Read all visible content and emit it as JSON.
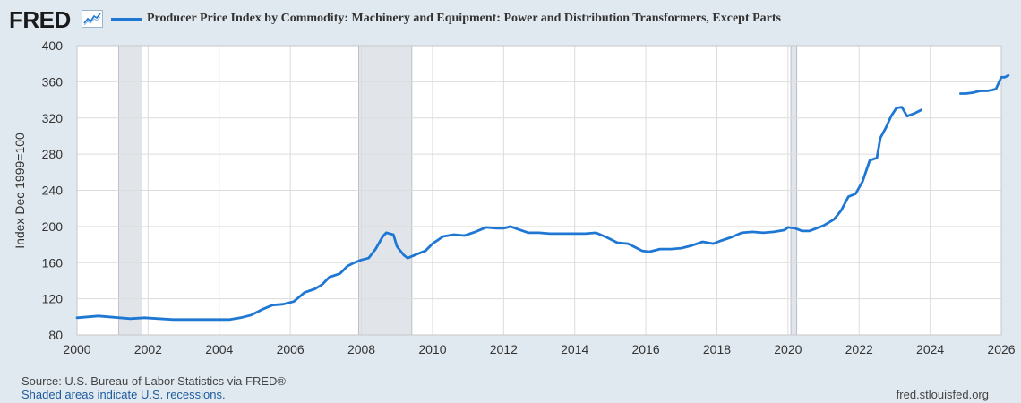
{
  "header": {
    "logo_text": "FRED",
    "logo_icon": "trend-line-icon",
    "title": "Producer Price Index by Commodity: Machinery and Equipment: Power and Distribution Transformers, Except Parts"
  },
  "footer": {
    "source": "Source: U.S. Bureau of Labor Statistics via FRED®",
    "recessions_note": "Shaded areas indicate U.S. recessions.",
    "site": "fred.stlouisfed.org"
  },
  "colors": {
    "background": "#e1e9f0",
    "plot_background": "#ffffff",
    "series": "#1f77d4",
    "recession": "#e1e5ea",
    "grid": "#dcdcdc"
  },
  "chart_data": {
    "type": "line",
    "title": "Producer Price Index by Commodity: Machinery and Equipment: Power and Distribution Transformers, Except Parts",
    "xlabel": "",
    "ylabel": "Index Dec 1999=100",
    "xlim": [
      2000,
      2026
    ],
    "ylim": [
      80,
      400
    ],
    "x_ticks": [
      2000,
      2002,
      2004,
      2006,
      2008,
      2010,
      2012,
      2014,
      2016,
      2018,
      2020,
      2022,
      2024,
      2026
    ],
    "x_tick_labels": [
      "2000",
      "2002",
      "2004",
      "2006",
      "2008",
      "2010",
      "2012",
      "2014",
      "2016",
      "2018",
      "2020",
      "2022",
      "2024",
      "2026"
    ],
    "y_ticks": [
      80,
      120,
      160,
      200,
      240,
      280,
      320,
      360,
      400
    ],
    "y_tick_labels": [
      "80",
      "120",
      "160",
      "200",
      "240",
      "280",
      "320",
      "360",
      "400"
    ],
    "grid": true,
    "recessions": [
      [
        2001.17,
        2001.83
      ],
      [
        2007.92,
        2009.42
      ],
      [
        2020.08,
        2020.25
      ]
    ],
    "series": [
      {
        "name": "Power and Distribution Transformers, Except Parts",
        "segments": [
          [
            [
              2000.0,
              99
            ],
            [
              2000.3,
              100
            ],
            [
              2000.6,
              101
            ],
            [
              2000.9,
              100
            ],
            [
              2001.2,
              99
            ],
            [
              2001.5,
              98
            ],
            [
              2001.9,
              99
            ],
            [
              2002.3,
              98
            ],
            [
              2002.7,
              97
            ],
            [
              2003.0,
              97
            ],
            [
              2003.3,
              97
            ],
            [
              2003.6,
              97
            ],
            [
              2004.0,
              97
            ],
            [
              2004.3,
              97
            ],
            [
              2004.6,
              99
            ],
            [
              2004.9,
              102
            ],
            [
              2005.2,
              108
            ],
            [
              2005.5,
              113
            ],
            [
              2005.8,
              114
            ],
            [
              2006.1,
              117
            ],
            [
              2006.4,
              127
            ],
            [
              2006.7,
              131
            ],
            [
              2006.9,
              136
            ],
            [
              2007.1,
              144
            ],
            [
              2007.4,
              148
            ],
            [
              2007.6,
              156
            ],
            [
              2007.8,
              160
            ],
            [
              2008.0,
              163
            ],
            [
              2008.2,
              165
            ],
            [
              2008.4,
              175
            ],
            [
              2008.6,
              189
            ],
            [
              2008.7,
              193
            ],
            [
              2008.9,
              191
            ],
            [
              2009.0,
              178
            ],
            [
              2009.2,
              168
            ],
            [
              2009.3,
              165
            ],
            [
              2009.6,
              170
            ],
            [
              2009.8,
              173
            ],
            [
              2010.0,
              181
            ],
            [
              2010.3,
              189
            ],
            [
              2010.6,
              191
            ],
            [
              2010.9,
              190
            ],
            [
              2011.2,
              194
            ],
            [
              2011.5,
              199
            ],
            [
              2011.8,
              198
            ],
            [
              2012.0,
              198
            ],
            [
              2012.2,
              200
            ],
            [
              2012.4,
              197
            ],
            [
              2012.7,
              193
            ],
            [
              2013.0,
              193
            ],
            [
              2013.3,
              192
            ],
            [
              2013.6,
              192
            ],
            [
              2014.0,
              192
            ],
            [
              2014.3,
              192
            ],
            [
              2014.6,
              193
            ],
            [
              2014.9,
              188
            ],
            [
              2015.2,
              182
            ],
            [
              2015.5,
              181
            ],
            [
              2015.7,
              177
            ],
            [
              2015.9,
              173
            ],
            [
              2016.1,
              172
            ],
            [
              2016.4,
              175
            ],
            [
              2016.7,
              175
            ],
            [
              2017.0,
              176
            ],
            [
              2017.3,
              179
            ],
            [
              2017.6,
              183
            ],
            [
              2017.9,
              181
            ],
            [
              2018.1,
              184
            ],
            [
              2018.4,
              188
            ],
            [
              2018.7,
              193
            ],
            [
              2019.0,
              194
            ],
            [
              2019.3,
              193
            ],
            [
              2019.6,
              194
            ],
            [
              2019.9,
              196
            ],
            [
              2020.0,
              199
            ],
            [
              2020.2,
              198
            ],
            [
              2020.4,
              195
            ],
            [
              2020.6,
              195
            ],
            [
              2020.8,
              198
            ],
            [
              2021.0,
              201
            ],
            [
              2021.3,
              208
            ],
            [
              2021.5,
              218
            ],
            [
              2021.7,
              233
            ],
            [
              2021.9,
              236
            ],
            [
              2022.1,
              250
            ],
            [
              2022.3,
              273
            ],
            [
              2022.5,
              276
            ],
            [
              2022.6,
              298
            ],
            [
              2022.75,
              309
            ],
            [
              2022.9,
              322
            ],
            [
              2023.05,
              331
            ],
            [
              2023.2,
              332
            ],
            [
              2023.35,
              322
            ],
            [
              2023.55,
              325
            ],
            [
              2023.75,
              329
            ]
          ],
          [
            [
              2024.85,
              347
            ],
            [
              2025.0,
              347
            ],
            [
              2025.2,
              348
            ],
            [
              2025.4,
              350
            ],
            [
              2025.6,
              350
            ],
            [
              2025.75,
              351
            ],
            [
              2025.85,
              352
            ],
            [
              2026.0,
              365
            ],
            [
              2026.1,
              365
            ],
            [
              2026.2,
              367
            ]
          ]
        ]
      }
    ]
  }
}
